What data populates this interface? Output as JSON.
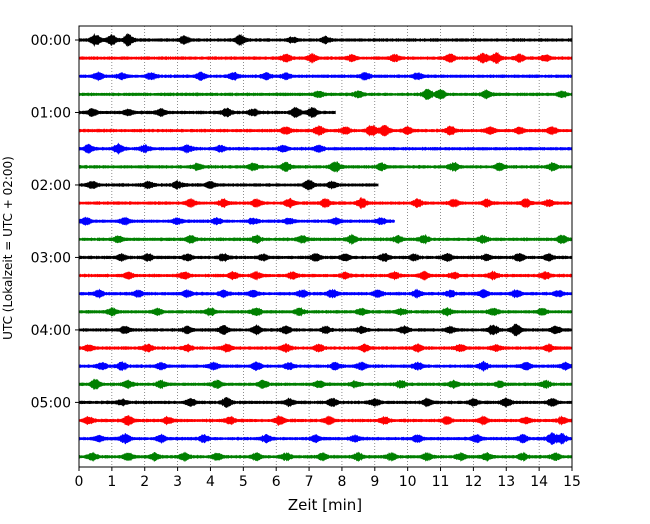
{
  "chart_data": {
    "type": "line",
    "title": "",
    "xlabel": "Zeit  [min]",
    "ylabel": "UTC (Lokalzeit = UTC + 02:00)",
    "xlim": [
      0,
      15
    ],
    "x_ticks": [
      "0",
      "1",
      "2",
      "3",
      "4",
      "5",
      "6",
      "7",
      "8",
      "9",
      "10",
      "11",
      "12",
      "13",
      "14",
      "15"
    ],
    "x_grid": true,
    "y_ticks": [
      "00:00",
      "01:00",
      "02:00",
      "03:00",
      "04:00",
      "05:00"
    ],
    "trace_interval_minutes": 15,
    "trace_colors": [
      "#000000",
      "#ff0000",
      "#0000ff",
      "#008000"
    ],
    "traces": [
      {
        "start": "00:00",
        "color": "#000000",
        "bursts": [
          [
            0.5,
            1.0
          ],
          [
            1.0,
            0.8
          ],
          [
            1.5,
            1.0
          ],
          [
            3.2,
            0.7
          ],
          [
            4.9,
            0.8
          ],
          [
            6.5,
            0.5
          ],
          [
            7.5,
            0.5
          ]
        ],
        "end": 15
      },
      {
        "start": "00:15",
        "color": "#ff0000",
        "bursts": [
          [
            6.3,
            0.6
          ],
          [
            7.1,
            0.7
          ],
          [
            8.3,
            0.5
          ],
          [
            9.6,
            0.6
          ],
          [
            11.3,
            0.7
          ],
          [
            12.3,
            0.8
          ],
          [
            12.7,
            0.9
          ],
          [
            13.4,
            0.6
          ],
          [
            14.2,
            0.5
          ]
        ],
        "end": 15
      },
      {
        "start": "00:30",
        "color": "#0000ff",
        "bursts": [
          [
            0.6,
            0.6
          ],
          [
            1.3,
            0.5
          ],
          [
            2.2,
            0.6
          ],
          [
            3.7,
            0.6
          ],
          [
            4.7,
            0.6
          ],
          [
            5.7,
            0.6
          ],
          [
            6.3,
            0.5
          ],
          [
            8.7,
            0.6
          ],
          [
            10.3,
            0.5
          ]
        ],
        "end": 15
      },
      {
        "start": "00:45",
        "color": "#008000",
        "bursts": [
          [
            7.3,
            0.6
          ],
          [
            8.5,
            0.5
          ],
          [
            10.6,
            0.9
          ],
          [
            11.0,
            0.8
          ],
          [
            12.4,
            0.7
          ],
          [
            14.7,
            0.5
          ]
        ],
        "end": 15
      },
      {
        "start": "01:00",
        "color": "#000000",
        "bursts": [
          [
            0.4,
            0.6
          ],
          [
            1.5,
            0.5
          ],
          [
            2.5,
            0.6
          ],
          [
            4.5,
            0.7
          ],
          [
            5.3,
            0.6
          ],
          [
            6.6,
            0.8
          ],
          [
            7.1,
            0.8
          ]
        ],
        "end": 7.8
      },
      {
        "start": "01:15",
        "color": "#ff0000",
        "bursts": [
          [
            6.3,
            0.6
          ],
          [
            7.3,
            0.8
          ],
          [
            8.1,
            0.6
          ],
          [
            8.9,
            1.0
          ],
          [
            9.3,
            0.9
          ],
          [
            10.0,
            0.6
          ],
          [
            11.3,
            0.7
          ],
          [
            12.5,
            0.6
          ],
          [
            13.4,
            0.5
          ],
          [
            14.4,
            0.6
          ]
        ],
        "end": 15
      },
      {
        "start": "01:30",
        "color": "#0000ff",
        "bursts": [
          [
            0.3,
            0.7
          ],
          [
            1.2,
            0.8
          ],
          [
            2.0,
            0.6
          ],
          [
            3.3,
            0.6
          ],
          [
            4.3,
            0.5
          ],
          [
            6.2,
            0.5
          ],
          [
            7.3,
            0.5
          ]
        ],
        "end": 15
      },
      {
        "start": "01:45",
        "color": "#008000",
        "bursts": [
          [
            3.6,
            0.5
          ],
          [
            5.3,
            0.6
          ],
          [
            6.3,
            0.7
          ],
          [
            7.8,
            0.9
          ],
          [
            9.2,
            0.6
          ],
          [
            11.4,
            0.7
          ],
          [
            12.8,
            0.6
          ],
          [
            14.4,
            0.6
          ]
        ],
        "end": 15
      },
      {
        "start": "02:00",
        "color": "#000000",
        "bursts": [
          [
            0.4,
            0.6
          ],
          [
            2.1,
            0.6
          ],
          [
            3.0,
            0.6
          ],
          [
            4.0,
            0.5
          ],
          [
            7.0,
            0.8
          ],
          [
            7.7,
            0.5
          ]
        ],
        "end": 9.1
      },
      {
        "start": "02:15",
        "color": "#ff0000",
        "bursts": [
          [
            3.4,
            0.6
          ],
          [
            4.4,
            0.6
          ],
          [
            5.4,
            0.6
          ],
          [
            6.4,
            0.7
          ],
          [
            7.5,
            0.7
          ],
          [
            8.6,
            0.9
          ],
          [
            10.3,
            0.6
          ],
          [
            11.4,
            0.6
          ],
          [
            12.4,
            0.6
          ],
          [
            13.6,
            0.7
          ],
          [
            14.3,
            0.5
          ]
        ],
        "end": 15
      },
      {
        "start": "02:30",
        "color": "#0000ff",
        "bursts": [
          [
            0.2,
            0.6
          ],
          [
            1.4,
            0.5
          ],
          [
            3.0,
            0.5
          ],
          [
            4.2,
            0.5
          ],
          [
            5.3,
            0.5
          ],
          [
            6.4,
            0.5
          ],
          [
            7.8,
            0.5
          ],
          [
            9.2,
            0.5
          ]
        ],
        "end": 9.6
      },
      {
        "start": "02:45",
        "color": "#008000",
        "bursts": [
          [
            1.2,
            0.5
          ],
          [
            3.4,
            0.6
          ],
          [
            5.4,
            0.6
          ],
          [
            6.8,
            0.6
          ],
          [
            8.3,
            0.7
          ],
          [
            9.7,
            0.6
          ],
          [
            10.5,
            0.7
          ],
          [
            12.3,
            0.6
          ],
          [
            14.7,
            0.7
          ]
        ],
        "end": 15
      },
      {
        "start": "03:00",
        "color": "#000000",
        "bursts": [
          [
            1.3,
            0.5
          ],
          [
            2.1,
            0.6
          ],
          [
            3.3,
            0.5
          ],
          [
            4.4,
            0.6
          ],
          [
            5.6,
            0.5
          ],
          [
            7.2,
            0.6
          ],
          [
            8.1,
            0.6
          ],
          [
            9.3,
            0.7
          ],
          [
            10.2,
            0.5
          ],
          [
            11.2,
            0.6
          ],
          [
            12.4,
            0.5
          ],
          [
            13.4,
            0.6
          ],
          [
            14.3,
            0.6
          ]
        ],
        "end": 15
      },
      {
        "start": "03:15",
        "color": "#ff0000",
        "bursts": [
          [
            1.5,
            0.5
          ],
          [
            3.2,
            0.6
          ],
          [
            4.7,
            0.6
          ],
          [
            5.4,
            0.6
          ],
          [
            6.5,
            0.6
          ],
          [
            8.1,
            0.5
          ],
          [
            9.6,
            0.6
          ],
          [
            10.5,
            0.6
          ],
          [
            11.4,
            0.5
          ],
          [
            12.6,
            0.6
          ],
          [
            14.2,
            0.6
          ]
        ],
        "end": 15
      },
      {
        "start": "03:30",
        "color": "#0000ff",
        "bursts": [
          [
            0.6,
            0.6
          ],
          [
            1.8,
            0.5
          ],
          [
            3.3,
            0.6
          ],
          [
            4.4,
            0.5
          ],
          [
            5.3,
            0.6
          ],
          [
            6.8,
            0.6
          ],
          [
            7.7,
            0.7
          ],
          [
            9.1,
            0.6
          ],
          [
            10.3,
            0.6
          ],
          [
            11.3,
            0.5
          ],
          [
            12.3,
            0.6
          ],
          [
            13.3,
            0.6
          ],
          [
            14.6,
            0.5
          ]
        ],
        "end": 15
      },
      {
        "start": "03:45",
        "color": "#008000",
        "bursts": [
          [
            1.0,
            0.6
          ],
          [
            2.4,
            0.5
          ],
          [
            4.0,
            0.6
          ],
          [
            5.4,
            0.7
          ],
          [
            6.7,
            0.6
          ],
          [
            8.6,
            0.6
          ],
          [
            9.8,
            0.5
          ],
          [
            11.2,
            0.6
          ],
          [
            12.6,
            0.6
          ],
          [
            14.1,
            0.5
          ]
        ],
        "end": 15
      },
      {
        "start": "04:00",
        "color": "#000000",
        "bursts": [
          [
            1.4,
            0.6
          ],
          [
            3.3,
            0.6
          ],
          [
            4.4,
            0.7
          ],
          [
            5.4,
            0.7
          ],
          [
            6.3,
            0.6
          ],
          [
            7.5,
            0.6
          ],
          [
            8.6,
            0.5
          ],
          [
            9.9,
            0.6
          ],
          [
            11.3,
            0.5
          ],
          [
            12.6,
            0.9
          ],
          [
            13.3,
            1.0
          ],
          [
            14.5,
            0.6
          ]
        ],
        "end": 15
      },
      {
        "start": "04:15",
        "color": "#ff0000",
        "bursts": [
          [
            0.3,
            0.5
          ],
          [
            2.1,
            0.6
          ],
          [
            3.3,
            0.5
          ],
          [
            4.5,
            0.6
          ],
          [
            6.3,
            0.6
          ],
          [
            7.3,
            0.6
          ],
          [
            8.7,
            0.6
          ],
          [
            10.3,
            0.6
          ],
          [
            11.6,
            0.6
          ],
          [
            12.7,
            0.5
          ],
          [
            14.3,
            0.6
          ]
        ],
        "end": 15
      },
      {
        "start": "04:30",
        "color": "#0000ff",
        "bursts": [
          [
            0.7,
            0.6
          ],
          [
            1.3,
            0.7
          ],
          [
            2.5,
            0.6
          ],
          [
            4.1,
            0.6
          ],
          [
            5.4,
            0.7
          ],
          [
            6.4,
            0.6
          ],
          [
            7.8,
            0.6
          ],
          [
            8.6,
            0.6
          ],
          [
            10.3,
            0.6
          ],
          [
            12.3,
            0.7
          ],
          [
            13.6,
            0.6
          ],
          [
            14.8,
            0.6
          ]
        ],
        "end": 15
      },
      {
        "start": "04:45",
        "color": "#008000",
        "bursts": [
          [
            0.5,
            0.8
          ],
          [
            1.5,
            0.6
          ],
          [
            2.5,
            0.6
          ],
          [
            4.2,
            0.6
          ],
          [
            5.6,
            0.6
          ],
          [
            7.3,
            0.6
          ],
          [
            8.4,
            0.5
          ],
          [
            9.8,
            0.6
          ],
          [
            11.4,
            0.6
          ],
          [
            12.8,
            0.5
          ],
          [
            14.2,
            0.6
          ]
        ],
        "end": 15
      },
      {
        "start": "05:00",
        "color": "#000000",
        "bursts": [
          [
            1.3,
            0.5
          ],
          [
            3.4,
            0.6
          ],
          [
            4.5,
            0.8
          ],
          [
            6.4,
            0.6
          ],
          [
            7.7,
            0.7
          ],
          [
            9.0,
            0.5
          ],
          [
            10.6,
            0.6
          ],
          [
            12.0,
            0.6
          ],
          [
            13.0,
            0.7
          ],
          [
            14.4,
            0.6
          ]
        ],
        "end": 15
      },
      {
        "start": "05:15",
        "color": "#ff0000",
        "bursts": [
          [
            0.3,
            0.6
          ],
          [
            1.5,
            0.9
          ],
          [
            2.7,
            0.6
          ],
          [
            4.6,
            0.6
          ],
          [
            6.1,
            0.7
          ],
          [
            7.6,
            0.6
          ],
          [
            9.3,
            0.6
          ],
          [
            11.2,
            0.6
          ],
          [
            12.3,
            0.6
          ],
          [
            13.6,
            0.5
          ],
          [
            14.7,
            0.6
          ]
        ],
        "end": 15
      },
      {
        "start": "05:30",
        "color": "#0000ff",
        "bursts": [
          [
            0.6,
            0.5
          ],
          [
            1.4,
            0.8
          ],
          [
            2.5,
            0.6
          ],
          [
            3.8,
            0.6
          ],
          [
            5.7,
            0.6
          ],
          [
            7.2,
            0.6
          ],
          [
            8.4,
            0.5
          ],
          [
            10.3,
            0.6
          ],
          [
            12.1,
            0.6
          ],
          [
            13.5,
            0.6
          ],
          [
            14.4,
            1.0
          ],
          [
            14.7,
            0.8
          ]
        ],
        "end": 15
      },
      {
        "start": "05:45",
        "color": "#008000",
        "bursts": [
          [
            0.4,
            0.6
          ],
          [
            1.5,
            0.6
          ],
          [
            2.3,
            0.6
          ],
          [
            3.2,
            0.6
          ],
          [
            4.2,
            0.6
          ],
          [
            5.4,
            0.6
          ],
          [
            6.3,
            0.6
          ],
          [
            7.4,
            0.6
          ],
          [
            8.5,
            0.6
          ],
          [
            9.5,
            0.6
          ],
          [
            10.6,
            0.6
          ],
          [
            11.6,
            0.6
          ],
          [
            12.4,
            0.6
          ],
          [
            13.5,
            0.6
          ],
          [
            14.5,
            0.6
          ]
        ],
        "end": 15
      }
    ]
  }
}
